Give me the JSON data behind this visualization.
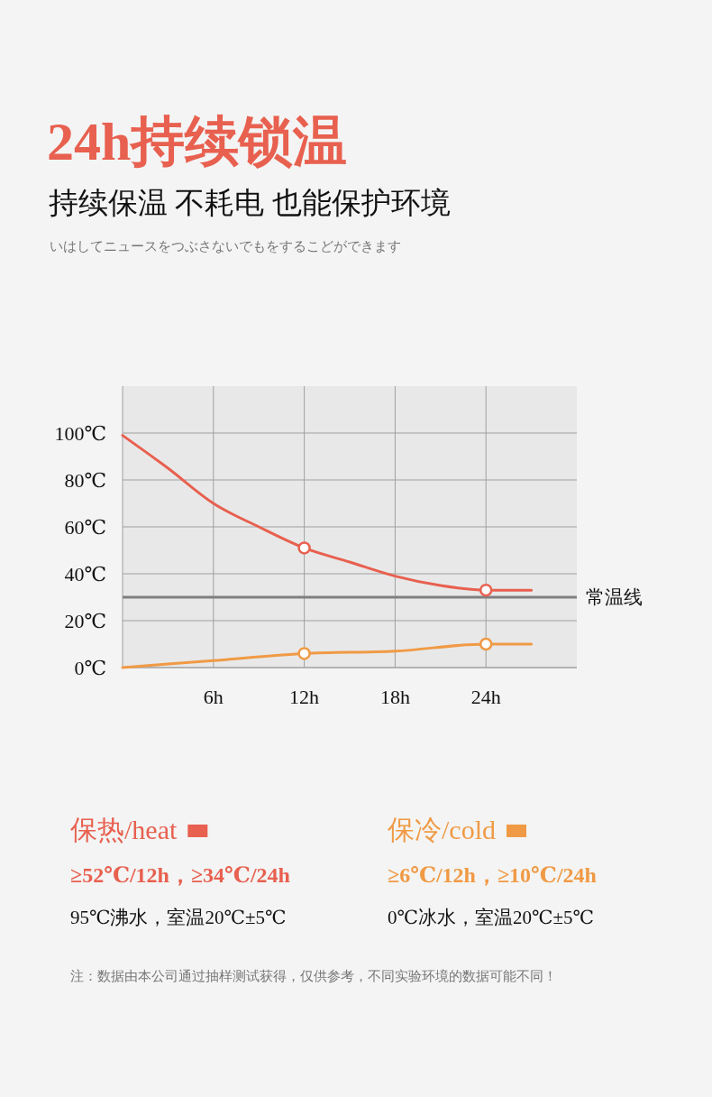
{
  "chart_data": {
    "type": "line",
    "title": "24h持续锁温",
    "subtitle": "持续保温 不耗电 也能保护环境",
    "annotations": [
      "いはしてニュースをつぶさないでもをするこどができます",
      "≥52℃/12h，≥34℃/24h",
      "95℃沸水，室温20℃±5℃",
      "≥6℃/12h，≥10℃/24h",
      "0℃冰水，室温20℃±5℃",
      "注：数据由本公司通过抽样测试获得，仅供参考，不同实验环境的数据可能不同！"
    ],
    "xlim": [
      0,
      30
    ],
    "xticks": [
      {
        "value": 6,
        "label": "6h"
      },
      {
        "value": 12,
        "label": "12h"
      },
      {
        "value": 18,
        "label": "18h"
      },
      {
        "value": 24,
        "label": "24h"
      }
    ],
    "ylim": [
      0,
      120
    ],
    "yticks": [
      {
        "value": 0,
        "label": "0℃"
      },
      {
        "value": 20,
        "label": "20℃"
      },
      {
        "value": 40,
        "label": "40℃"
      },
      {
        "value": 60,
        "label": "60℃"
      },
      {
        "value": 80,
        "label": "80℃"
      },
      {
        "value": 100,
        "label": "100℃"
      }
    ],
    "grid": true,
    "legend": "bottom",
    "ref_lines": [
      {
        "axis": "y",
        "value": 30,
        "label": "常温线",
        "color": "#808080"
      }
    ],
    "series": [
      {
        "name": "保热/heat",
        "color": "#e8604f",
        "marker": "none",
        "x": [
          0,
          3,
          6,
          9,
          12,
          15,
          18,
          21,
          24,
          27
        ],
        "values": [
          99,
          85,
          70,
          60,
          51,
          45,
          39,
          35,
          33,
          33
        ]
      },
      {
        "name": "保冷/cold",
        "color": "#f09a45",
        "marker": "none",
        "x": [
          0,
          6,
          12,
          18,
          24,
          27
        ],
        "values": [
          0,
          3,
          6,
          7,
          10,
          10
        ]
      },
      {
        "type": "scatter",
        "color": "#e8604f",
        "marker": "circle",
        "x": [
          12,
          24
        ],
        "values": [
          51,
          33
        ]
      },
      {
        "type": "scatter",
        "color": "#f09a45",
        "marker": "circle",
        "x": [
          12,
          24
        ],
        "values": [
          6,
          10
        ]
      }
    ]
  }
}
